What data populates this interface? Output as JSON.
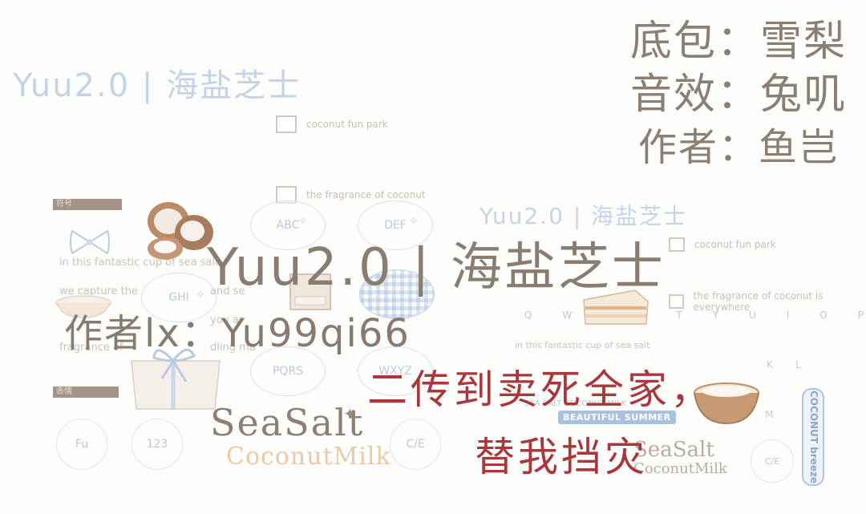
{
  "watermark": {
    "title_large": "Yuu2.0 | 海盐芝士",
    "title_small": "Yuu2.0 | 海盐芝士"
  },
  "credits": {
    "base_pack": "底包：雪梨",
    "sound_effect": "音效：兔叽",
    "author": "作者：鱼岂"
  },
  "main": {
    "title": "Yuu2.0 | 海盐芝士",
    "author": "作者lx：Yu99qi66"
  },
  "warning": {
    "line1": "二传到卖死全家，",
    "line2": "替我挡灾"
  },
  "background": {
    "checklist": [
      "coconut fun park",
      "the fragrance of coconut",
      "coconut fun park",
      "the fragrance of coconut is everywhere"
    ],
    "keys_left": [
      "ABC",
      "DEF",
      "GHI",
      "PQRS",
      "WXYZ"
    ],
    "bottom_keys": [
      "Fu",
      "123",
      "C/E"
    ],
    "bottom_keys_right": [
      "C/E"
    ],
    "qwerty": [
      "Q",
      "W",
      "E",
      "R",
      "T",
      "Y",
      "U",
      "I",
      "O",
      "P"
    ],
    "side_keys": [
      "K",
      "L",
      "M"
    ],
    "text_lines": [
      "in this fantastic cup of sea salt",
      "we capture the",
      "and se",
      "you ar",
      "fragrance of",
      "dling ma"
    ],
    "text_right": "in this fantastic cup of sea salt",
    "tags": [
      "符号",
      "表情"
    ]
  },
  "logo": {
    "sea_salt": "SeaSalt",
    "coconut_milk": "CoconutMilk",
    "badge_beautiful": "BEAUTIFUL SUMMER",
    "badge_sea": "SEA SALT COCONUT MILK",
    "vertical_brand": "COCONUT breeze"
  },
  "colors": {
    "credit_text": "#8b7f73",
    "warning_red": "#a8383b",
    "watermark_blue": "#c4d4e6",
    "background": "#fdfdfb"
  }
}
